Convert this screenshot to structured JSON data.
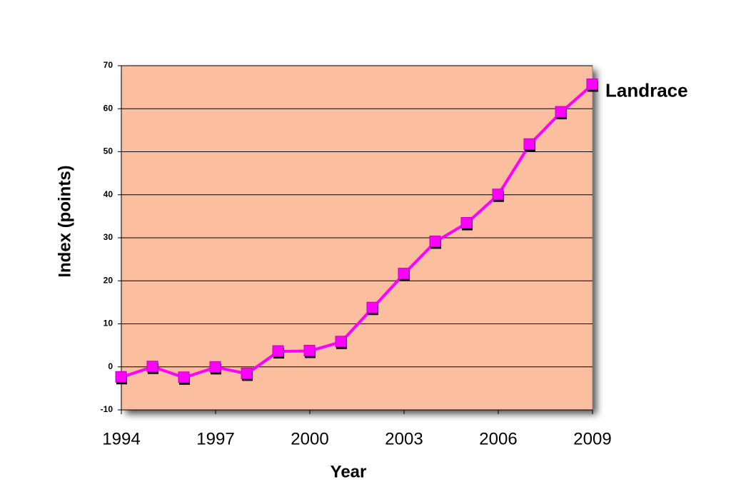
{
  "chart_data": {
    "type": "line",
    "x": [
      1994,
      1995,
      1996,
      1997,
      1998,
      1999,
      2000,
      2001,
      2002,
      2003,
      2004,
      2005,
      2006,
      2007,
      2008,
      2009
    ],
    "series": [
      {
        "name": "Landrace",
        "color": "#ff00ff",
        "values": [
          -2.4,
          0,
          -2.5,
          -0.1,
          -1.6,
          3.6,
          3.7,
          5.8,
          13.7,
          21.6,
          29.1,
          33.4,
          40,
          51.7,
          59.2,
          65.6
        ]
      }
    ],
    "xlim": [
      1994,
      2009
    ],
    "xticks": [
      1994,
      1997,
      2000,
      2003,
      2006,
      2009
    ],
    "ylim": [
      -10,
      70
    ],
    "yticks": [
      -10,
      0,
      10,
      20,
      30,
      40,
      50,
      60,
      70
    ],
    "xlabel": "Year",
    "ylabel": "Index (points)",
    "grid": true,
    "plot_background": "#fbbfa0"
  }
}
